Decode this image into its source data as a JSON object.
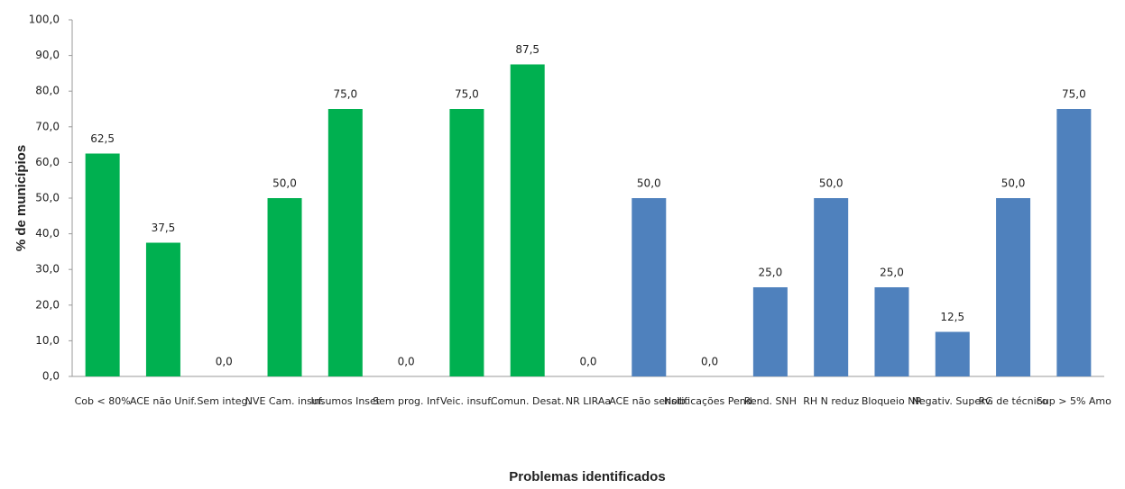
{
  "chart_data": {
    "type": "bar",
    "y_label": "% de municípios",
    "x_label": "Problemas identificados",
    "categories": [
      "Cob < 80%",
      "ACE não Unif.",
      "Sem integ.",
      "NVE Cam. insuf.",
      "Insumos Inset",
      "Sem prog. Inf",
      "Veic. insuf.",
      "Comun. Desat.",
      "NR LIRAa",
      "ACE não sensib.",
      "Notificações Pend.",
      "Rend. SNH",
      "RH N reduz",
      "Bloqueio NR",
      "Negativ. Superv.",
      "RG de técnico",
      "Sup > 5% Amo"
    ],
    "values": [
      62.5,
      37.5,
      0,
      50,
      75,
      0,
      75,
      87.5,
      0,
      50,
      0,
      25,
      50,
      25,
      12.5,
      50,
      75
    ],
    "value_labels": [
      "62,5",
      "37,5",
      "0,0",
      "50,0",
      "75,0",
      "0,0",
      "75,0",
      "87,5",
      "0,0",
      "50,0",
      "0,0",
      "25,0",
      "50,0",
      "25,0",
      "12,5",
      "50,0",
      "75,0"
    ],
    "colors": [
      "#00b050",
      "#00b050",
      "#00b050",
      "#00b050",
      "#00b050",
      "#00b050",
      "#00b050",
      "#00b050",
      "#00b050",
      "#4f81bd",
      "#4f81bd",
      "#4f81bd",
      "#4f81bd",
      "#4f81bd",
      "#4f81bd",
      "#4f81bd",
      "#4f81bd"
    ],
    "ylim": [
      0,
      100
    ],
    "yticks": [
      {
        "value": 0,
        "label": "0,0"
      },
      {
        "value": 10,
        "label": "10,0"
      },
      {
        "value": 20,
        "label": "20,0"
      },
      {
        "value": 30,
        "label": "30,0"
      },
      {
        "value": 40,
        "label": "40,0"
      },
      {
        "value": 50,
        "label": "50,0"
      },
      {
        "value": 60,
        "label": "60,0"
      },
      {
        "value": 70,
        "label": "70,0"
      },
      {
        "value": 80,
        "label": "80,0"
      },
      {
        "value": 90,
        "label": "90,0"
      },
      {
        "value": 100,
        "label": "100,0"
      }
    ],
    "grid": false
  }
}
